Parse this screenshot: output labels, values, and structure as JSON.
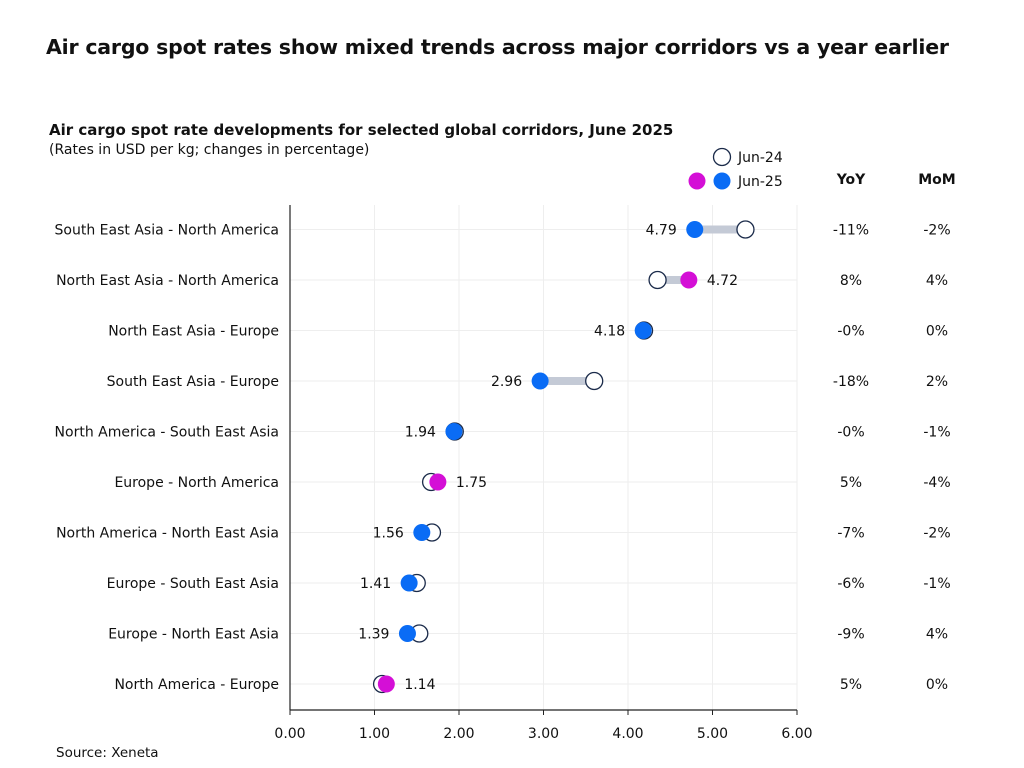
{
  "headline": "Air cargo spot rates show mixed trends across major corridors vs a year earlier",
  "source": "Source: Xeneta",
  "colors": {
    "jun25": "#0a6cf5",
    "jun25_up": "#d40fd6",
    "jun24_fill": "#ffffff",
    "jun24_stroke": "#1b2b4a",
    "connector": "#c4cad6",
    "grid": "#eeeeee",
    "axis": "#222222"
  },
  "chart_data": {
    "type": "dumbbell",
    "title": "Air cargo spot rate developments for selected global corridors, June 2025",
    "subtitle": "(Rates in USD per kg; changes in percentage)",
    "xlim": [
      0,
      6
    ],
    "xticks": [
      "0.00",
      "1.00",
      "2.00",
      "3.00",
      "4.00",
      "5.00",
      "6.00"
    ],
    "grid": true,
    "legend": {
      "placement": "top-right",
      "entries": [
        "Jun-24",
        "Jun-25"
      ]
    },
    "table_headers": {
      "yoy": "YoY",
      "mom": "MoM"
    },
    "rows": [
      {
        "corridor": "South East Asia - North America",
        "jun24": 5.39,
        "jun25": 4.79,
        "label": "4.79",
        "yoy": "-11%",
        "mom": "-2%",
        "up": false
      },
      {
        "corridor": "North East Asia - North America",
        "jun24": 4.35,
        "jun25": 4.72,
        "label": "4.72",
        "yoy": "8%",
        "mom": "4%",
        "up": true
      },
      {
        "corridor": "North East Asia - Europe",
        "jun24": 4.19,
        "jun25": 4.18,
        "label": "4.18",
        "yoy": "-0%",
        "mom": "0%",
        "up": false
      },
      {
        "corridor": "South East Asia - Europe",
        "jun24": 3.6,
        "jun25": 2.96,
        "label": "2.96",
        "yoy": "-18%",
        "mom": "2%",
        "up": false
      },
      {
        "corridor": "North America - South East Asia",
        "jun24": 1.95,
        "jun25": 1.94,
        "label": "1.94",
        "yoy": "-0%",
        "mom": "-1%",
        "up": false
      },
      {
        "corridor": "Europe - North America",
        "jun24": 1.67,
        "jun25": 1.75,
        "label": "1.75",
        "yoy": "5%",
        "mom": "-4%",
        "up": true
      },
      {
        "corridor": "North America - North East Asia",
        "jun24": 1.68,
        "jun25": 1.56,
        "label": "1.56",
        "yoy": "-7%",
        "mom": "-2%",
        "up": false
      },
      {
        "corridor": "Europe - South East Asia",
        "jun24": 1.5,
        "jun25": 1.41,
        "label": "1.41",
        "yoy": "-6%",
        "mom": "-1%",
        "up": false
      },
      {
        "corridor": "Europe - North East Asia",
        "jun24": 1.53,
        "jun25": 1.39,
        "label": "1.39",
        "yoy": "-9%",
        "mom": "4%",
        "up": false
      },
      {
        "corridor": "North America - Europe",
        "jun24": 1.09,
        "jun25": 1.14,
        "label": "1.14",
        "yoy": "5%",
        "mom": "0%",
        "up": true
      }
    ]
  }
}
